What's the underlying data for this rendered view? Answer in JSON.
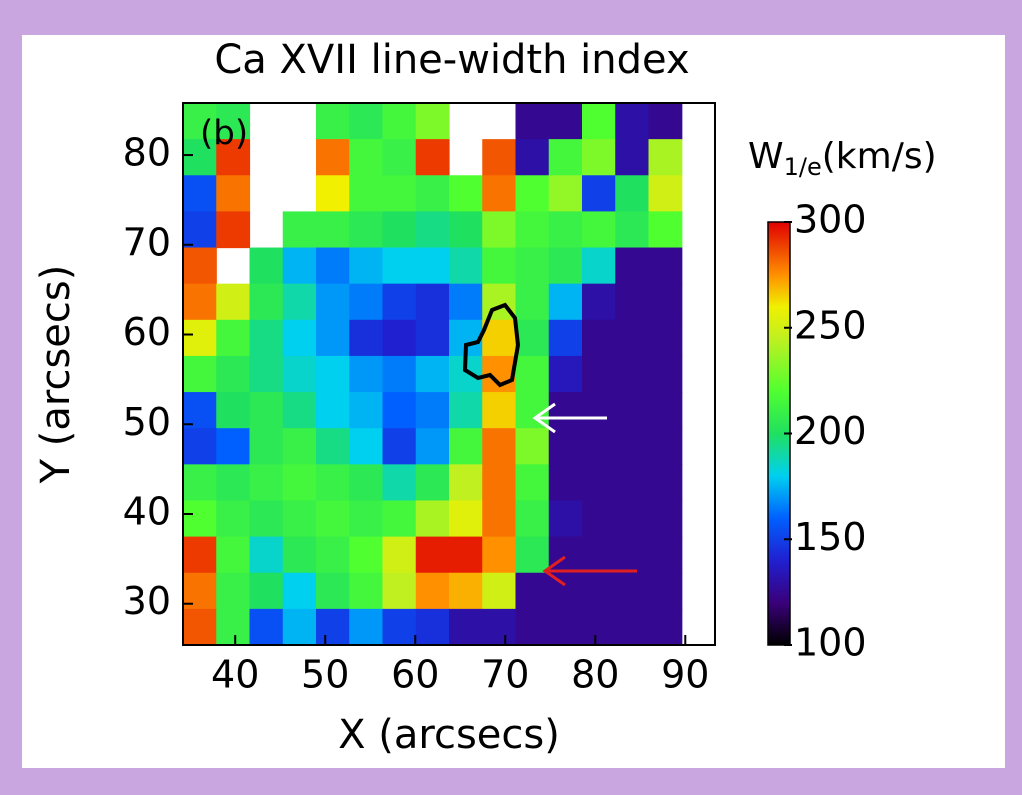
{
  "chart_data": {
    "type": "heatmap",
    "title": "Ca XVII line-width index",
    "panel_label": "(b)",
    "x_label": "X (arcsecs)",
    "y_label": "Y (arcsecs)",
    "colorbar_label": [
      "W",
      "1/e",
      "(km/s)"
    ],
    "xlim": [
      34.2,
      93.3
    ],
    "ylim": [
      25.4,
      85.8
    ],
    "xticks": [
      40,
      50,
      60,
      70,
      80,
      90
    ],
    "yticks": [
      30,
      40,
      50,
      60,
      70,
      80
    ],
    "clim": [
      100,
      300
    ],
    "cticks": [
      100,
      150,
      200,
      250,
      300
    ],
    "z": [
      [
        210,
        205,
        null,
        null,
        210,
        205,
        215,
        230,
        null,
        null,
        125,
        125,
        220,
        130,
        125,
        null
      ],
      [
        200,
        290,
        null,
        null,
        280,
        215,
        210,
        290,
        null,
        285,
        130,
        215,
        230,
        130,
        240,
        null
      ],
      [
        155,
        280,
        null,
        null,
        260,
        215,
        215,
        210,
        220,
        280,
        220,
        235,
        150,
        200,
        250,
        null
      ],
      [
        150,
        290,
        null,
        210,
        210,
        205,
        200,
        195,
        200,
        230,
        215,
        210,
        215,
        205,
        220,
        null
      ],
      [
        285,
        null,
        200,
        175,
        165,
        175,
        180,
        180,
        190,
        215,
        210,
        205,
        185,
        125,
        125,
        null
      ],
      [
        280,
        250,
        205,
        190,
        170,
        165,
        150,
        145,
        165,
        240,
        210,
        175,
        130,
        125,
        125,
        null
      ],
      [
        255,
        215,
        195,
        180,
        170,
        145,
        140,
        145,
        175,
        265,
        205,
        150,
        125,
        125,
        125,
        null
      ],
      [
        215,
        205,
        195,
        185,
        180,
        170,
        165,
        175,
        185,
        275,
        215,
        135,
        125,
        125,
        125,
        null
      ],
      [
        155,
        200,
        205,
        195,
        180,
        175,
        160,
        165,
        190,
        265,
        215,
        125,
        125,
        125,
        125,
        null
      ],
      [
        150,
        160,
        205,
        210,
        195,
        180,
        150,
        170,
        215,
        280,
        230,
        125,
        125,
        125,
        125,
        null
      ],
      [
        210,
        205,
        210,
        215,
        210,
        205,
        190,
        205,
        245,
        280,
        215,
        125,
        125,
        125,
        125,
        null
      ],
      [
        220,
        210,
        205,
        210,
        215,
        210,
        215,
        240,
        255,
        280,
        210,
        130,
        125,
        125,
        125,
        null
      ],
      [
        290,
        215,
        185,
        205,
        210,
        220,
        250,
        295,
        295,
        275,
        205,
        125,
        125,
        125,
        125,
        null
      ],
      [
        280,
        210,
        200,
        180,
        205,
        215,
        245,
        275,
        270,
        250,
        125,
        125,
        125,
        125,
        125,
        null
      ],
      [
        285,
        210,
        155,
        175,
        150,
        170,
        150,
        145,
        130,
        130,
        125,
        125,
        125,
        125,
        125,
        null
      ]
    ]
  }
}
